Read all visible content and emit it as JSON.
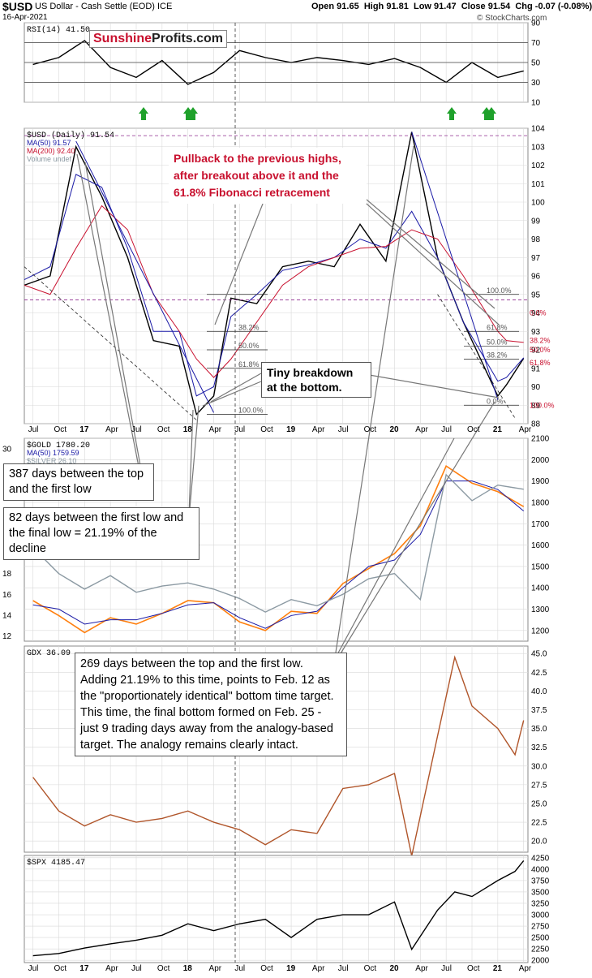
{
  "header": {
    "symbol": "$USD",
    "description": "US Dollar - Cash Settle (EOD) ICE",
    "date": "16-Apr-2021",
    "open": "Open 91.65",
    "high": "High 91.81",
    "low": "Low 91.47",
    "close": "Close 91.54",
    "chg": "Chg -0.07 (-0.08%)",
    "watermark": "© StockCharts.com"
  },
  "logo": {
    "part1": "Sunshine",
    "part2": "Profits.com"
  },
  "colors": {
    "price_line": "#000000",
    "ma50": "#1a1aa6",
    "ma200": "#c8102e",
    "gold": "#ff7f0e",
    "silver": "#8c9aa3",
    "gdx": "#b0552a",
    "arrow": "#1fa12b",
    "callout_red": "#c8102e",
    "grid": "#d9d9d9"
  },
  "panels": {
    "rsi": {
      "label": "RSI(14) 41.50",
      "ticks": [
        "90",
        "70",
        "50",
        "30",
        "10"
      ]
    },
    "usd": {
      "label": "$USD (Daily) 91.54",
      "legend": [
        "MA(50) 91.57",
        "MA(200) 92.40",
        "Volume undef"
      ],
      "ticks": [
        "104",
        "103",
        "102",
        "101",
        "100",
        "99",
        "98",
        "97",
        "96",
        "95",
        "94",
        "93",
        "92",
        "91",
        "90",
        "89",
        "88"
      ],
      "fib_left": [
        "38.2%",
        "50.0%",
        "61.8%",
        "100.0%"
      ],
      "fib_right": [
        "100.0%",
        "61.8%",
        "50.0%",
        "38.2%",
        "0.0%"
      ],
      "fib_axis": [
        "0.0%",
        "38.2%",
        "50.0%",
        "61.8%",
        "100.0%"
      ]
    },
    "gold": {
      "label": "$GOLD 1780.20",
      "legend": [
        "MA(50) 1759.59",
        "$SILVER 26.10"
      ],
      "ticks": [
        "2100",
        "2000",
        "1900",
        "1800",
        "1700",
        "1600",
        "1500",
        "1400",
        "1300",
        "1200"
      ],
      "left_ticks": [
        "30",
        "18",
        "16",
        "14",
        "12"
      ]
    },
    "gdx": {
      "label": "GDX 36.09",
      "ticks": [
        "45.0",
        "42.5",
        "40.0",
        "37.5",
        "35.0",
        "32.5",
        "30.0",
        "27.5",
        "25.0",
        "22.5",
        "20.0"
      ]
    },
    "spx": {
      "label": "$SPX 4185.47",
      "ticks": [
        "4250",
        "4000",
        "3750",
        "3500",
        "3250",
        "3000",
        "2750",
        "2500",
        "2250",
        "2000"
      ]
    }
  },
  "x_axis": [
    "Jul",
    "Oct",
    "17",
    "Apr",
    "Jul",
    "Oct",
    "18",
    "Apr",
    "Jul",
    "Oct",
    "19",
    "Apr",
    "Jul",
    "Oct",
    "20",
    "Apr",
    "Jul",
    "Oct",
    "21",
    "Apr"
  ],
  "callouts": {
    "pullback": "Pullback to the previous highs, after breakout above it and the 61.8% Fibonacci retracement",
    "breakdown": "Tiny breakdown at the bottom.",
    "days387": "387 days between the top and the first low",
    "days82": "82 days between the first low and the final low = 21.19% of the decline",
    "days269": "269 days between the top and the first low. Adding 21.19% to this time, points to Feb. 12 as the \"proportionately identical\" bottom time target. This time, the final bottom formed on Feb. 25 - just 9 trading days away from the analogy-based target. The analogy remains clearly intact."
  },
  "chart_data": [
    {
      "type": "line",
      "title": "RSI(14) 41.50",
      "ylim": [
        10,
        90
      ],
      "x": [
        "2016-07",
        "2016-10",
        "2017-01",
        "2017-04",
        "2017-07",
        "2017-10",
        "2018-01",
        "2018-04",
        "2018-07",
        "2018-10",
        "2019-01",
        "2019-04",
        "2019-07",
        "2019-10",
        "2020-01",
        "2020-04",
        "2020-07",
        "2020-10",
        "2021-01",
        "2021-04"
      ],
      "series": [
        {
          "name": "RSI(14)",
          "values": [
            48,
            55,
            72,
            45,
            35,
            52,
            28,
            40,
            62,
            55,
            50,
            55,
            52,
            48,
            54,
            45,
            30,
            50,
            35,
            41.5
          ]
        }
      ],
      "reference_lines": [
        70,
        50,
        30
      ]
    },
    {
      "type": "line",
      "title": "$USD (Daily) 91.54",
      "ylim": [
        88,
        104
      ],
      "x": [
        "2016-06",
        "2016-09",
        "2016-12",
        "2017-03",
        "2017-06",
        "2017-09",
        "2017-12",
        "2018-02",
        "2018-04",
        "2018-06",
        "2018-09",
        "2018-12",
        "2019-03",
        "2019-06",
        "2019-09",
        "2019-12",
        "2020-03",
        "2020-06",
        "2020-09",
        "2021-01",
        "2021-02",
        "2021-04"
      ],
      "series": [
        {
          "name": "$USD",
          "values": [
            95.5,
            96.0,
            103.0,
            100.3,
            97.0,
            92.5,
            92.2,
            88.5,
            89.5,
            94.8,
            94.5,
            96.5,
            96.8,
            96.5,
            98.8,
            96.8,
            103.8,
            97.0,
            93.5,
            89.5,
            90.1,
            91.54
          ]
        },
        {
          "name": "MA(50)",
          "values": [
            95.8,
            96.5,
            101.5,
            100.8,
            97.5,
            93.0,
            93.0,
            89.5,
            90.0,
            93.8,
            95.0,
            96.3,
            96.6,
            97.0,
            98.0,
            97.5,
            99.5,
            97.0,
            93.5,
            90.3,
            90.5,
            91.57
          ]
        },
        {
          "name": "MA(200)",
          "values": [
            95.5,
            95.0,
            97.5,
            99.8,
            98.5,
            95.0,
            93.0,
            91.5,
            90.5,
            91.5,
            93.5,
            95.5,
            96.5,
            97.0,
            97.5,
            97.6,
            98.5,
            98.0,
            96.0,
            93.0,
            92.5,
            92.4
          ]
        }
      ]
    },
    {
      "type": "line",
      "title": "$GOLD 1780.20",
      "ylim": [
        1150,
        2100
      ],
      "x": [
        "2016-07",
        "2016-10",
        "2017-01",
        "2017-04",
        "2017-07",
        "2017-10",
        "2018-01",
        "2018-04",
        "2018-07",
        "2018-10",
        "2019-01",
        "2019-04",
        "2019-07",
        "2019-10",
        "2020-01",
        "2020-04",
        "2020-07",
        "2020-10",
        "2021-01",
        "2021-04"
      ],
      "series": [
        {
          "name": "$GOLD",
          "values": [
            1340,
            1270,
            1190,
            1260,
            1230,
            1280,
            1340,
            1330,
            1240,
            1200,
            1290,
            1280,
            1420,
            1490,
            1560,
            1690,
            1970,
            1890,
            1850,
            1780.2
          ]
        },
        {
          "name": "MA(50)",
          "values": [
            1320,
            1300,
            1230,
            1250,
            1250,
            1280,
            1320,
            1330,
            1260,
            1210,
            1270,
            1290,
            1400,
            1500,
            1530,
            1650,
            1900,
            1900,
            1860,
            1759.59
          ]
        },
        {
          "name": "$SILVER",
          "values": [
            20.5,
            18.0,
            16.5,
            17.8,
            16.2,
            16.8,
            17.1,
            16.5,
            15.6,
            14.3,
            15.5,
            14.9,
            16.0,
            17.5,
            18.0,
            15.5,
            27.5,
            25.0,
            26.5,
            26.1
          ]
        }
      ]
    },
    {
      "type": "line",
      "title": "GDX 36.09",
      "ylim": [
        18.5,
        46
      ],
      "x": [
        "2016-07",
        "2016-10",
        "2017-01",
        "2017-04",
        "2017-07",
        "2017-10",
        "2018-01",
        "2018-04",
        "2018-07",
        "2018-10",
        "2019-01",
        "2019-04",
        "2019-07",
        "2019-10",
        "2020-01",
        "2020-03",
        "2020-06",
        "2020-08",
        "2020-10",
        "2021-01",
        "2021-03",
        "2021-04"
      ],
      "series": [
        {
          "name": "GDX",
          "values": [
            28.5,
            24.0,
            22.0,
            23.5,
            22.5,
            23.0,
            24.0,
            22.5,
            21.5,
            19.5,
            21.5,
            21.0,
            27.0,
            27.5,
            29.0,
            18.0,
            34.0,
            44.5,
            38.0,
            35.0,
            31.5,
            36.09
          ]
        }
      ]
    },
    {
      "type": "line",
      "title": "$SPX 4185.47",
      "ylim": [
        1950,
        4300
      ],
      "x": [
        "2016-07",
        "2016-10",
        "2017-01",
        "2017-04",
        "2017-07",
        "2017-10",
        "2018-01",
        "2018-04",
        "2018-07",
        "2018-10",
        "2019-01",
        "2019-04",
        "2019-07",
        "2019-10",
        "2020-01",
        "2020-03",
        "2020-06",
        "2020-08",
        "2020-10",
        "2021-01",
        "2021-03",
        "2021-04"
      ],
      "series": [
        {
          "name": "$SPX",
          "values": [
            2100,
            2150,
            2270,
            2360,
            2440,
            2550,
            2800,
            2650,
            2800,
            2900,
            2500,
            2900,
            3000,
            3000,
            3280,
            2240,
            3100,
            3500,
            3400,
            3750,
            3950,
            4185.47
          ]
        }
      ]
    }
  ]
}
